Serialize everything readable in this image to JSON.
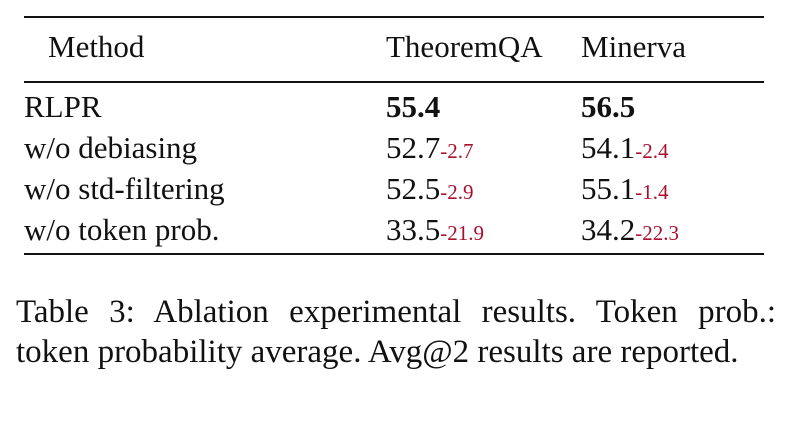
{
  "table": {
    "headers": {
      "method": "Method",
      "theoremqa": "TheoremQA",
      "minerva": "Minerva"
    },
    "rows": [
      {
        "method": "RLPR",
        "theoremqa": {
          "value": "55.4",
          "delta": ""
        },
        "minerva": {
          "value": "56.5",
          "delta": ""
        },
        "bold": true
      },
      {
        "method": "w/o debiasing",
        "theoremqa": {
          "value": "52.7",
          "delta": "-2.7"
        },
        "minerva": {
          "value": "54.1",
          "delta": "-2.4"
        },
        "bold": false
      },
      {
        "method": "w/o std-filtering",
        "theoremqa": {
          "value": "52.5",
          "delta": "-2.9"
        },
        "minerva": {
          "value": "55.1",
          "delta": "-1.4"
        },
        "bold": false
      },
      {
        "method": "w/o token prob.",
        "theoremqa": {
          "value": "33.5",
          "delta": "-21.9"
        },
        "minerva": {
          "value": "34.2",
          "delta": "-22.3"
        },
        "bold": false
      }
    ]
  },
  "caption": "Table 3: Ablation experimental results. Token prob.: token probability average. Avg@2 results are reported.",
  "colors": {
    "text": "#111111",
    "delta": "#a8102e"
  }
}
